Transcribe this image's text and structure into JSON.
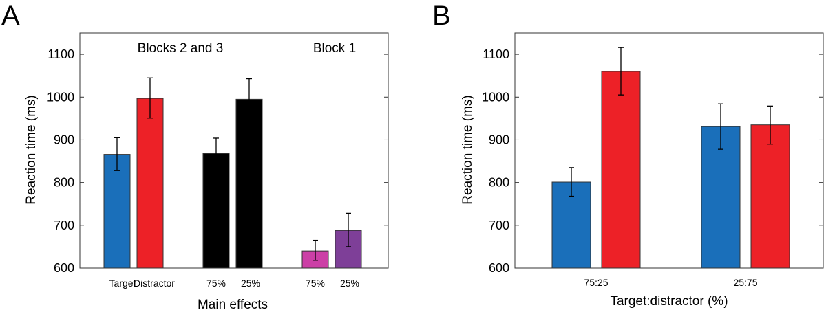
{
  "chart_data": [
    {
      "panel": "A",
      "type": "bar",
      "ylabel": "Reaction time (ms)",
      "xlabel": "Main effects",
      "ylim": [
        600,
        1150
      ],
      "yticks": [
        600,
        700,
        800,
        900,
        1000,
        1100
      ],
      "annotations": [
        "Blocks 2 and 3",
        "Block 1"
      ],
      "bars": [
        {
          "label": "Target",
          "value": 866,
          "err_low": 828,
          "err_high": 905,
          "color": "#1a6fba"
        },
        {
          "label": "Distractor",
          "value": 997,
          "err_low": 951,
          "err_high": 1045,
          "color": "#ed2127"
        },
        {
          "label": "75%",
          "value": 868,
          "err_low": 832,
          "err_high": 904,
          "color": "#000000"
        },
        {
          "label": "25%",
          "value": 995,
          "err_low": 948,
          "err_high": 1043,
          "color": "#000000"
        },
        {
          "label": "75%",
          "value": 640,
          "err_low": 618,
          "err_high": 665,
          "color": "#cc3fa6"
        },
        {
          "label": "25%",
          "value": 688,
          "err_low": 650,
          "err_high": 728,
          "color": "#7e3f98"
        }
      ]
    },
    {
      "panel": "B",
      "type": "bar",
      "ylabel": "Reaction time (ms)",
      "xlabel": "Target:distractor (%)",
      "ylim": [
        600,
        1150
      ],
      "yticks": [
        600,
        700,
        800,
        900,
        1000,
        1100
      ],
      "categories": [
        "75:25",
        "25:75"
      ],
      "series": [
        {
          "name": "Target",
          "color": "#1a6fba",
          "values": [
            801,
            931
          ],
          "err_low": [
            768,
            878
          ],
          "err_high": [
            835,
            984
          ]
        },
        {
          "name": "Distractor",
          "color": "#ed2127",
          "values": [
            1060,
            935
          ],
          "err_low": [
            1005,
            890
          ],
          "err_high": [
            1116,
            979
          ]
        }
      ]
    }
  ]
}
